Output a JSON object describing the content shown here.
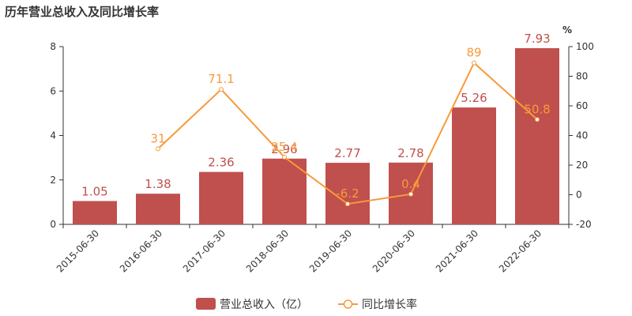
{
  "chart_data": {
    "type": "bar",
    "title": "历年营业总收入及同比增长率",
    "categories": [
      "2015-06-30",
      "2016-06-30",
      "2017-06-30",
      "2018-06-30",
      "2019-06-30",
      "2020-06-30",
      "2021-06-30",
      "2022-06-30"
    ],
    "series": [
      {
        "name": "营业总收入（亿）",
        "type": "bar",
        "axis": "left",
        "color": "#c0504d",
        "values": [
          1.05,
          1.38,
          2.36,
          2.96,
          2.77,
          2.78,
          5.26,
          7.93
        ],
        "labels": [
          "1.05",
          "1.38",
          "2.36",
          "2.96",
          "2.77",
          "2.78",
          "5.26",
          "7.93"
        ]
      },
      {
        "name": "同比增长率",
        "type": "line",
        "axis": "right",
        "color": "#f79a3c",
        "values": [
          null,
          31,
          71.1,
          25.4,
          -6.2,
          0.4,
          89,
          50.8
        ],
        "labels": [
          "",
          "31",
          "71.1",
          "25.4",
          "-6.2",
          "0.4",
          "89",
          "50.8"
        ]
      }
    ],
    "left_axis": {
      "min": 0,
      "max": 8,
      "ticks": [
        "0",
        "2",
        "4",
        "6",
        "8"
      ]
    },
    "right_axis": {
      "min": -20,
      "max": 100,
      "unit": "%",
      "ticks": [
        "-20",
        "0",
        "20",
        "40",
        "60",
        "80",
        "100"
      ]
    },
    "grid": false,
    "legend_position": "bottom-center"
  }
}
